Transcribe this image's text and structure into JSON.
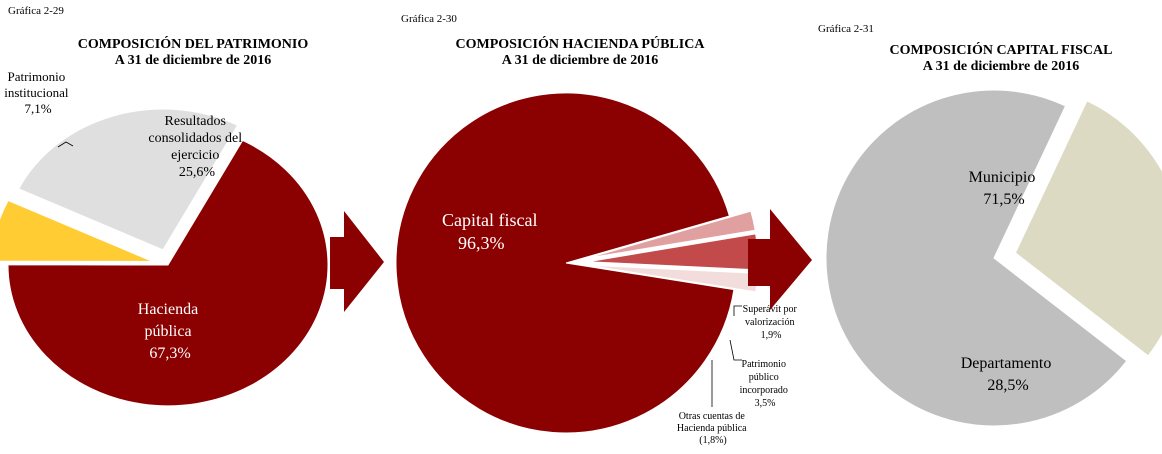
{
  "charts": [
    {
      "figure_label": "Gráfica 2-29",
      "title": "COMPOSICIÓN DEL PATRIMONIO",
      "subtitle": "A 31 de diciembre de 2016",
      "slice_labels": [
        {
          "lines": [
            "Hacienda",
            "pública",
            "67,3%"
          ]
        },
        {
          "lines": [
            "Patrimonio",
            "institucional",
            "7,1%"
          ]
        },
        {
          "lines": [
            "Resultados",
            "consolidados  del",
            "ejercicio",
            "25,6%"
          ]
        }
      ]
    },
    {
      "figure_label": "Gráfica 2-30",
      "title": "COMPOSICIÓN HACIENDA PÚBLICA",
      "subtitle": "A 31 de diciembre de 2016",
      "slice_labels": [
        {
          "lines": [
            "Capital fiscal",
            "96,3%"
          ]
        },
        {
          "lines": [
            "Superávit por",
            "valorización",
            "1,9%"
          ]
        },
        {
          "lines": [
            "Patrimonio",
            "público",
            "incorporado",
            "3,5%"
          ]
        },
        {
          "lines": [
            "Otras cuentas de",
            "Hacienda pública",
            "(1,8%)"
          ]
        }
      ]
    },
    {
      "figure_label": "Gráfica 2-31",
      "title": "COMPOSICIÓN CAPITAL FISCAL",
      "subtitle": "A 31 de diciembre de 2016",
      "slice_labels": [
        {
          "lines": [
            "Municipio",
            "71,5%"
          ]
        },
        {
          "lines": [
            "Departamento",
            "28,5%"
          ]
        }
      ]
    }
  ],
  "chart_data": [
    {
      "type": "pie",
      "title": "COMPOSICIÓN DEL PATRIMONIO",
      "subtitle": "A 31 de diciembre de 2016",
      "categories": [
        "Hacienda pública",
        "Patrimonio institucional",
        "Resultados consolidados del ejercicio"
      ],
      "values": [
        67.3,
        7.1,
        25.6
      ],
      "colors": [
        "#8b0000",
        "#ffcc33",
        "#e0dfdf"
      ],
      "exploded": [
        false,
        true,
        true
      ]
    },
    {
      "type": "pie",
      "title": "COMPOSICIÓN HACIENDA PÚBLICA",
      "subtitle": "A 31 de diciembre de 2016",
      "categories": [
        "Capital fiscal",
        "Superávit por valorización",
        "Patrimonio público incorporado",
        "Otras cuentas de Hacienda pública"
      ],
      "values": [
        96.3,
        1.9,
        3.5,
        -1.8
      ],
      "colors": [
        "#8b0000",
        "#e0a0a0",
        "#c24a4a",
        "#f3dcdc"
      ],
      "exploded": [
        false,
        true,
        true,
        true
      ]
    },
    {
      "type": "pie",
      "title": "COMPOSICIÓN CAPITAL FISCAL",
      "subtitle": "A 31 de diciembre de 2016",
      "categories": [
        "Municipio",
        "Departamento"
      ],
      "values": [
        71.5,
        28.5
      ],
      "colors": [
        "#bfbfbf",
        "#dddac4"
      ],
      "exploded": [
        false,
        true
      ]
    }
  ]
}
